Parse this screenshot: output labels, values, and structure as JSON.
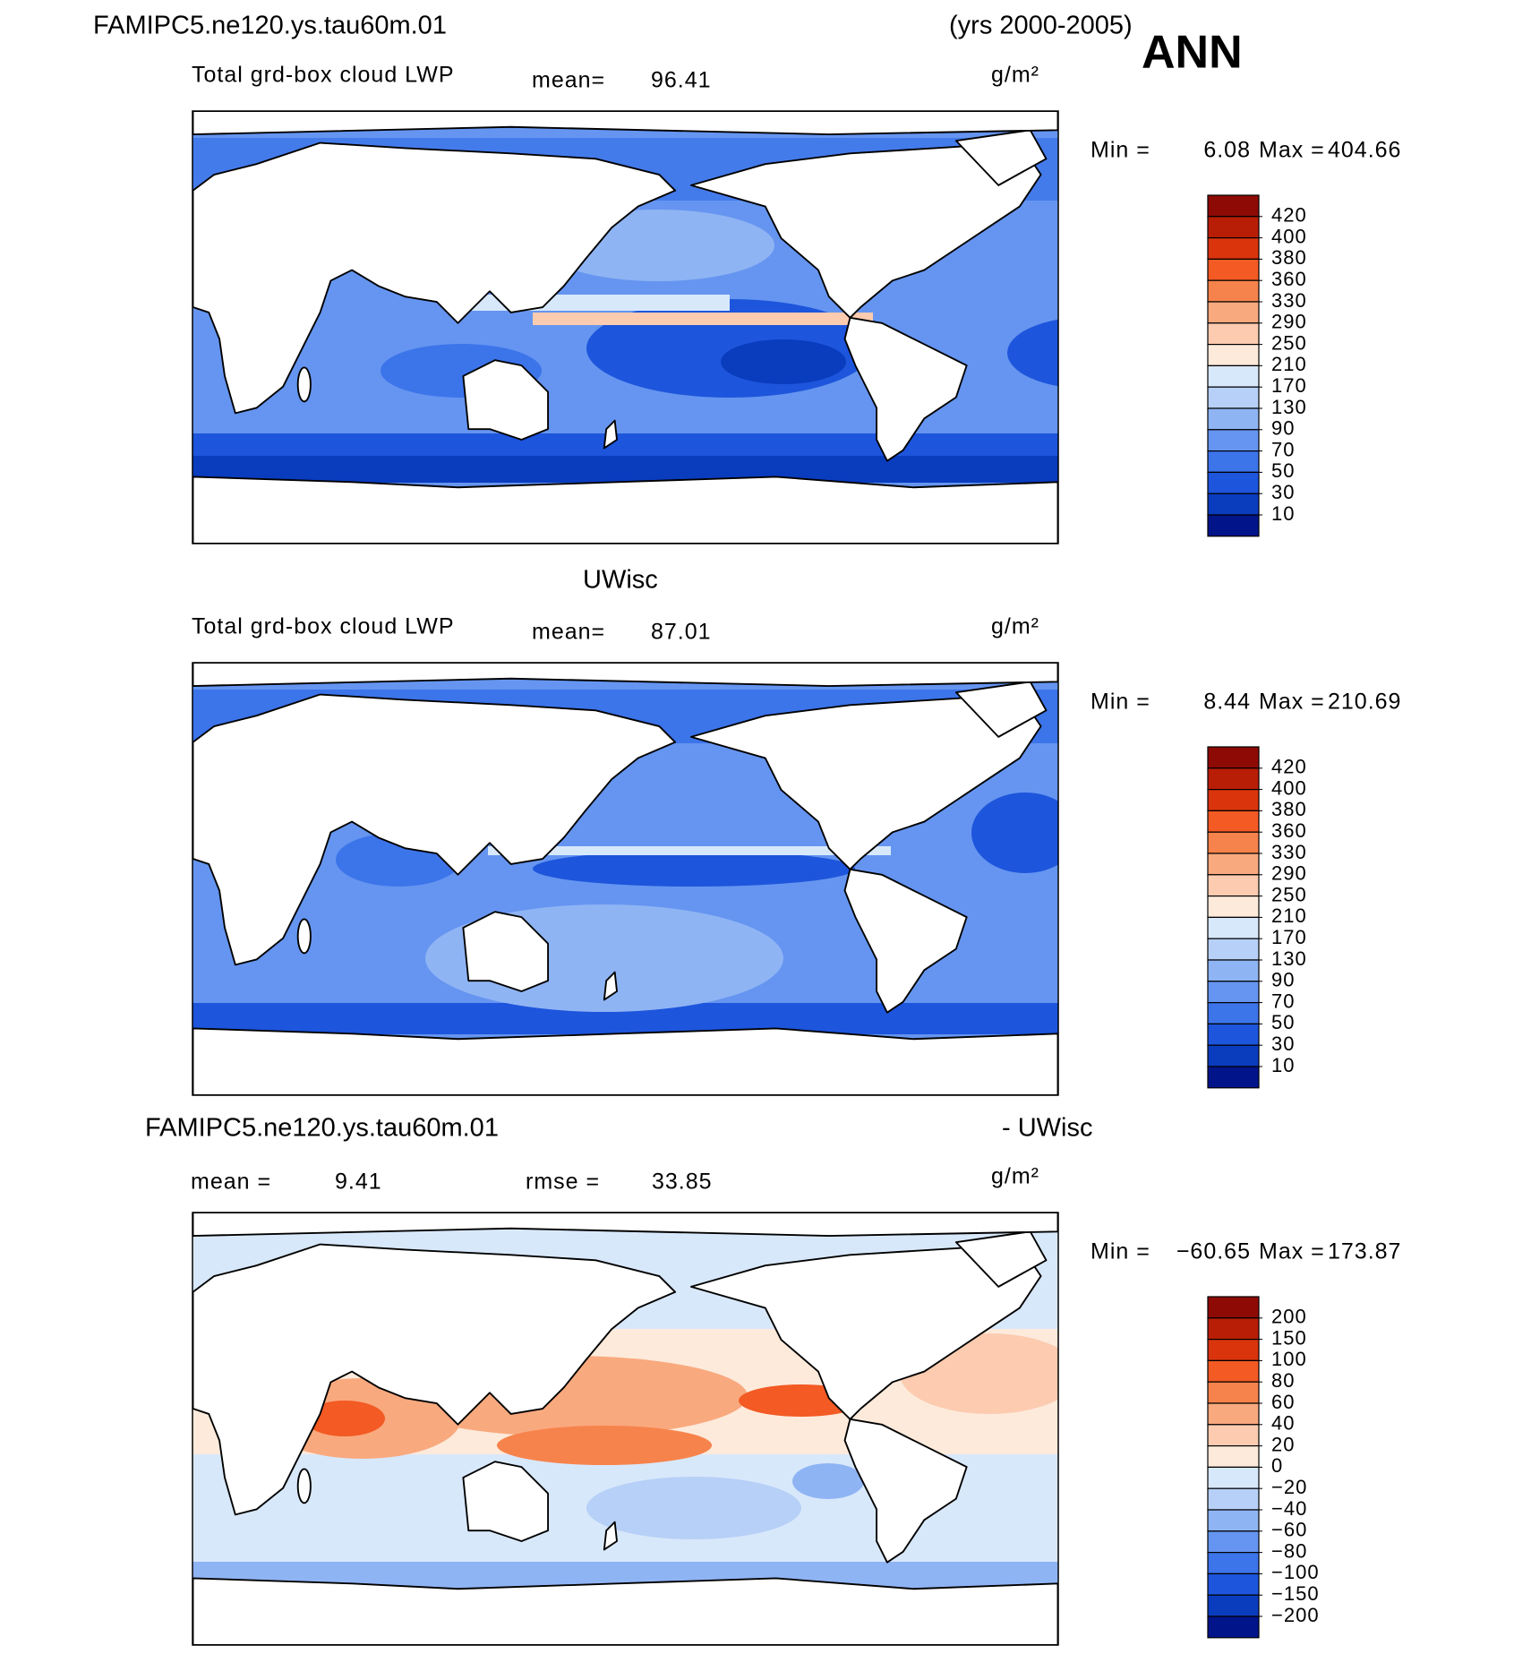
{
  "header": {
    "left": "FAMIPC5.ne120.ys.tau60m.01",
    "right": "(yrs 2000-2005)",
    "season": "ANN"
  },
  "panels": [
    {
      "subtitle": "Total grd-box cloud LWP",
      "mean_label": "mean=",
      "mean": 96.41,
      "units": "g/m²",
      "min_label": "Min =",
      "min": 6.08,
      "max_label": "Max =",
      "max": 404.66,
      "levels": [
        420,
        400,
        380,
        360,
        330,
        290,
        250,
        210,
        170,
        130,
        90,
        70,
        50,
        30,
        10
      ],
      "colors": [
        "#8e0a05",
        "#b81e06",
        "#d9340c",
        "#f35a24",
        "#f7834c",
        "#f9a97e",
        "#fccbb0",
        "#fdeadb",
        "#d8e8fb",
        "#b7d0f7",
        "#8fb4f4",
        "#6595f0",
        "#3c74ea",
        "#1d55dc",
        "#0a3cbe",
        "#02148a"
      ]
    },
    {
      "title": "UWisc",
      "subtitle": "Total grd-box cloud LWP",
      "mean_label": "mean=",
      "mean": 87.01,
      "units": "g/m²",
      "min_label": "Min =",
      "min": 8.44,
      "max_label": "Max =",
      "max": 210.69,
      "levels": [
        420,
        400,
        380,
        360,
        330,
        290,
        250,
        210,
        170,
        130,
        90,
        70,
        50,
        30,
        10
      ],
      "colors": [
        "#8e0a05",
        "#b81e06",
        "#d9340c",
        "#f35a24",
        "#f7834c",
        "#f9a97e",
        "#fccbb0",
        "#fdeadb",
        "#d8e8fb",
        "#b7d0f7",
        "#8fb4f4",
        "#6595f0",
        "#3c74ea",
        "#1d55dc",
        "#0a3cbe",
        "#02148a"
      ]
    },
    {
      "title": "FAMIPC5.ne120.ys.tau60m.01",
      "title_right": "- UWisc",
      "mean_label": "mean =",
      "mean": 9.41,
      "rmse_label": "rmse =",
      "rmse": 33.85,
      "units": "g/m²",
      "min_label": "Min =",
      "min": {
        "value": -60.65,
        "label": "−60.65"
      },
      "max_label": "Max =",
      "max": 173.87,
      "levels": [
        200,
        150,
        100,
        80,
        60,
        40,
        20,
        0,
        {
          "value": -20,
          "label": "−20"
        },
        {
          "value": -40,
          "label": "−40"
        },
        {
          "value": -60,
          "label": "−60"
        },
        {
          "value": -80,
          "label": "−80"
        },
        {
          "value": -100,
          "label": "−100"
        },
        {
          "value": -150,
          "label": "−150"
        },
        {
          "value": -200,
          "label": "−200"
        }
      ],
      "colors": [
        "#8e0a05",
        "#b81e06",
        "#d9340c",
        "#f35a24",
        "#f7834c",
        "#f9a97e",
        "#fccbb0",
        "#fdeadb",
        "#d8e8fb",
        "#b7d0f7",
        "#8fb4f4",
        "#6595f0",
        "#3c74ea",
        "#1d55dc",
        "#0a3cbe",
        "#02148a"
      ]
    }
  ]
}
